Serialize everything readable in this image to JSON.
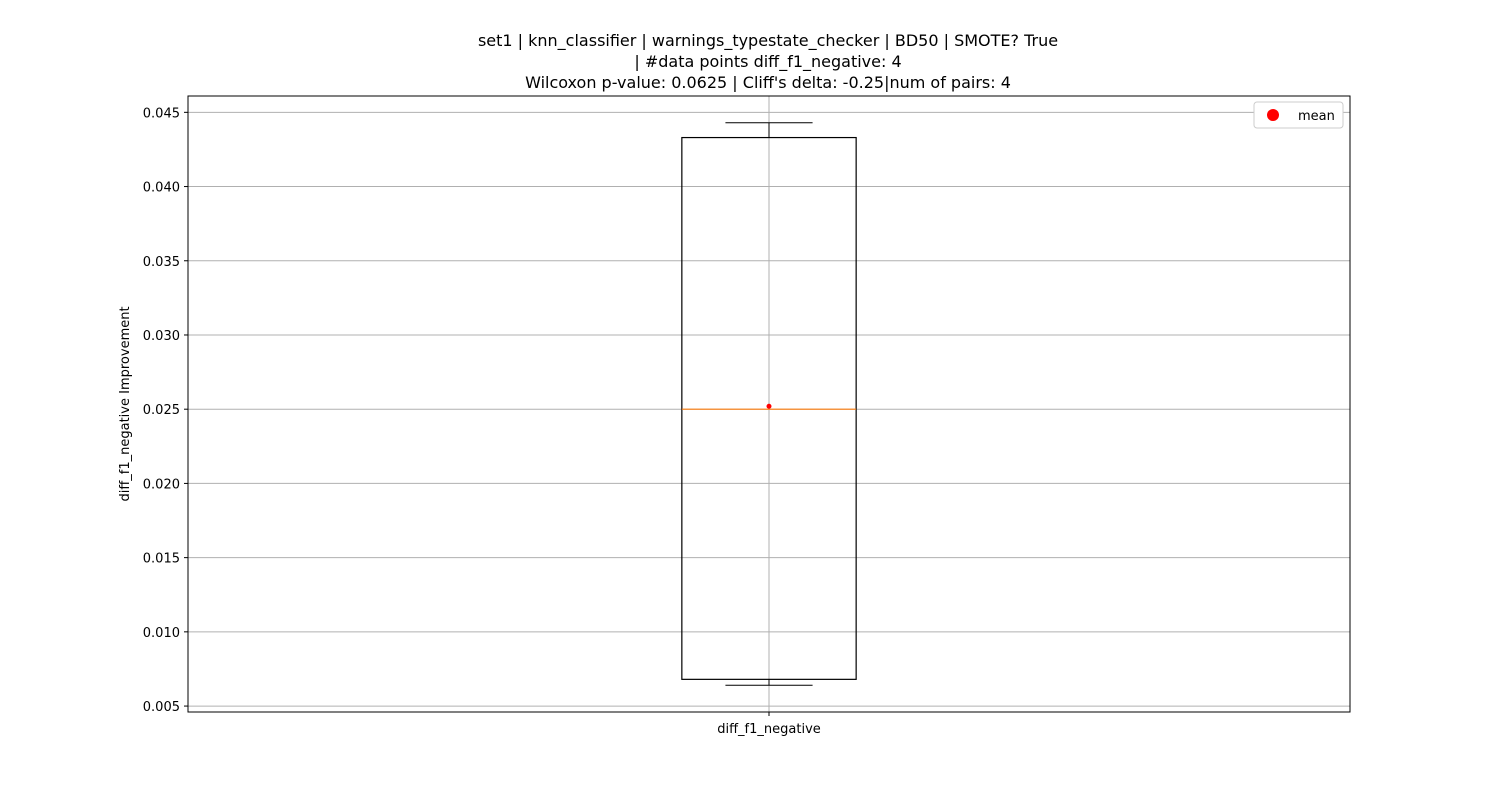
{
  "chart_data": {
    "type": "box",
    "title_lines": [
      "set1 | knn_classifier | warnings_typestate_checker | BD50 | SMOTE? True",
      "| #data points diff_f1_negative: 4",
      "Wilcoxon p-value: 0.0625 | Cliff's delta: -0.25|num of pairs: 4"
    ],
    "xlabel": "",
    "ylabel": "diff_f1_negative Improvement",
    "categories": [
      "diff_f1_negative"
    ],
    "ylim": [
      0.0046,
      0.0461
    ],
    "yticks": [
      0.005,
      0.01,
      0.015,
      0.02,
      0.025,
      0.03,
      0.035,
      0.04,
      0.045
    ],
    "ytick_labels": [
      "0.005",
      "0.010",
      "0.015",
      "0.020",
      "0.025",
      "0.030",
      "0.035",
      "0.040",
      "0.045"
    ],
    "grid": true,
    "boxes": [
      {
        "category": "diff_f1_negative",
        "whisker_low": 0.0064,
        "q1": 0.0068,
        "median": 0.025,
        "q3": 0.0433,
        "whisker_high": 0.0443,
        "mean": 0.0252
      }
    ],
    "legend": {
      "position": "top-right",
      "entries": [
        {
          "label": "mean",
          "marker": "circle"
        }
      ]
    },
    "colors": {
      "box": "#000000",
      "median": "#ff7f0e",
      "mean": "#ff0000",
      "grid": "#b0b0b0"
    }
  }
}
